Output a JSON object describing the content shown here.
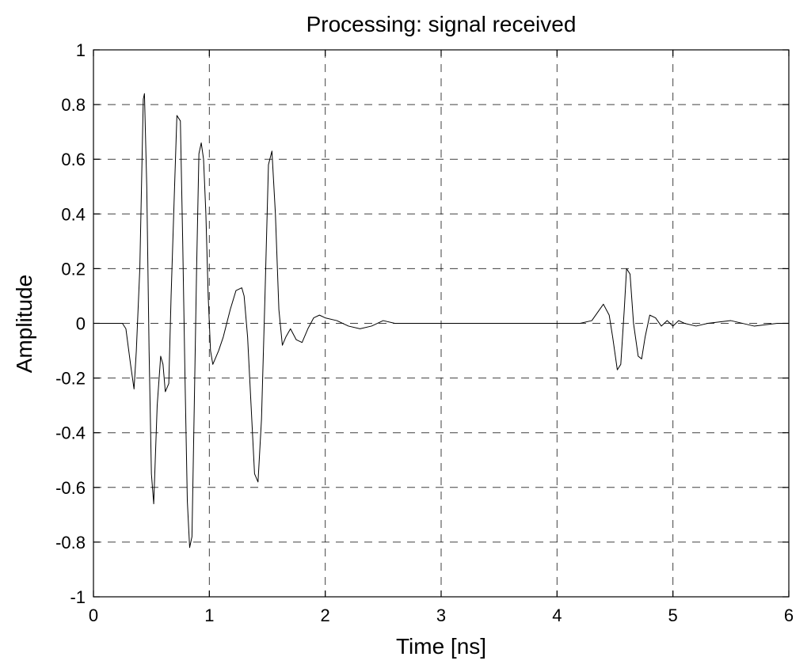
{
  "chart_data": {
    "type": "line",
    "title": "Processing: signal received",
    "xlabel": "Time [ns]",
    "ylabel": "Amplitude",
    "xlim": [
      0,
      6
    ],
    "ylim": [
      -1,
      1
    ],
    "grid": true,
    "x_ticks": [
      0,
      1,
      2,
      3,
      4,
      5,
      6
    ],
    "x_tick_labels": [
      "0",
      "1",
      "2",
      "3",
      "4",
      "5",
      "6"
    ],
    "y_ticks": [
      1,
      0.8,
      0.6,
      0.4,
      0.2,
      0,
      -0.2,
      -0.4,
      -0.6,
      -0.8,
      -1
    ],
    "y_tick_labels": [
      "1",
      "0.8",
      "0.6",
      "0.4",
      "0.2",
      "0",
      "-0.2",
      "-0.4",
      "-0.6",
      "-0.8",
      "-1"
    ],
    "series": [
      {
        "color": "#000000",
        "x": [
          0,
          0.2,
          0.25,
          0.28,
          0.32,
          0.35,
          0.37,
          0.4,
          0.43,
          0.44,
          0.46,
          0.48,
          0.5,
          0.52,
          0.55,
          0.58,
          0.6,
          0.62,
          0.65,
          0.67,
          0.7,
          0.72,
          0.75,
          0.77,
          0.79,
          0.81,
          0.83,
          0.85,
          0.87,
          0.89,
          0.91,
          0.93,
          0.95,
          0.97,
          0.99,
          1.01,
          1.03,
          1.05,
          1.08,
          1.12,
          1.18,
          1.23,
          1.28,
          1.3,
          1.33,
          1.36,
          1.39,
          1.42,
          1.45,
          1.48,
          1.51,
          1.54,
          1.57,
          1.6,
          1.63,
          1.66,
          1.7,
          1.75,
          1.8,
          1.85,
          1.9,
          1.95,
          2.0,
          2.1,
          2.2,
          2.3,
          2.4,
          2.5,
          2.6,
          3.0,
          3.5,
          4.0,
          4.2,
          4.3,
          4.35,
          4.4,
          4.45,
          4.48,
          4.52,
          4.55,
          4.58,
          4.6,
          4.63,
          4.66,
          4.7,
          4.73,
          4.76,
          4.8,
          4.85,
          4.9,
          4.95,
          5.0,
          5.05,
          5.1,
          5.2,
          5.3,
          5.5,
          5.7,
          5.9,
          6.0
        ],
        "values": [
          0,
          0,
          0,
          -0.02,
          -0.15,
          -0.24,
          -0.1,
          0.2,
          0.82,
          0.84,
          0.5,
          -0.1,
          -0.55,
          -0.66,
          -0.3,
          -0.12,
          -0.15,
          -0.25,
          -0.22,
          0.1,
          0.5,
          0.76,
          0.74,
          0.3,
          -0.2,
          -0.65,
          -0.82,
          -0.78,
          -0.3,
          0.2,
          0.62,
          0.66,
          0.6,
          0.4,
          0.1,
          -0.1,
          -0.15,
          -0.13,
          -0.1,
          -0.05,
          0.05,
          0.12,
          0.13,
          0.1,
          -0.05,
          -0.3,
          -0.55,
          -0.58,
          -0.35,
          0.1,
          0.58,
          0.63,
          0.4,
          0.05,
          -0.08,
          -0.05,
          -0.02,
          -0.06,
          -0.07,
          -0.02,
          0.02,
          0.03,
          0.02,
          0.01,
          -0.01,
          -0.02,
          -0.01,
          0.01,
          0.0,
          0.0,
          0.0,
          0.0,
          0.0,
          0.01,
          0.04,
          0.07,
          0.03,
          -0.05,
          -0.17,
          -0.15,
          0.05,
          0.2,
          0.18,
          0.0,
          -0.12,
          -0.13,
          -0.05,
          0.03,
          0.02,
          -0.01,
          0.01,
          -0.01,
          0.01,
          0.0,
          -0.01,
          0.0,
          0.01,
          -0.01,
          0.0,
          0.0
        ]
      }
    ]
  }
}
